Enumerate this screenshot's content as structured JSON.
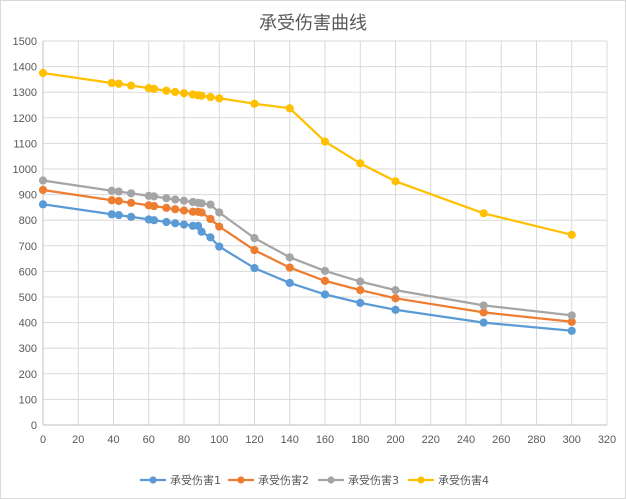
{
  "chart_data": {
    "type": "line",
    "title": "承受伤害曲线",
    "xlabel": "",
    "ylabel": "",
    "xlim": [
      0,
      320
    ],
    "ylim": [
      0,
      1500
    ],
    "x_ticks": [
      "0",
      "20",
      "40",
      "60",
      "80",
      "100",
      "120",
      "140",
      "160",
      "180",
      "200",
      "220",
      "240",
      "260",
      "280",
      "300",
      "320"
    ],
    "y_ticks": [
      "0",
      "100",
      "200",
      "300",
      "400",
      "500",
      "600",
      "700",
      "800",
      "900",
      "1000",
      "1100",
      "1200",
      "1300",
      "1400",
      "1500"
    ],
    "grid": true,
    "legend_position": "bottom",
    "x": [
      0,
      39,
      43,
      50,
      60,
      63,
      70,
      75,
      80,
      85,
      88,
      90,
      95,
      100,
      120,
      140,
      160,
      180,
      200,
      250,
      300
    ],
    "series": [
      {
        "name": "承受伤害1",
        "color": "#5b9bd5",
        "values": [
          862,
          823,
          820,
          813,
          803,
          800,
          793,
          788,
          783,
          778,
          778,
          755,
          733,
          697,
          613,
          555,
          510,
          477,
          450,
          400,
          368
        ]
      },
      {
        "name": "承受伤害2",
        "color": "#ed7d31",
        "values": [
          918,
          878,
          875,
          868,
          858,
          855,
          848,
          843,
          838,
          833,
          833,
          830,
          805,
          775,
          683,
          615,
          563,
          527,
          495,
          440,
          403
        ]
      },
      {
        "name": "承受伤害3",
        "color": "#a5a5a5",
        "values": [
          955,
          915,
          912,
          905,
          895,
          893,
          886,
          881,
          876,
          871,
          868,
          866,
          861,
          830,
          730,
          655,
          602,
          560,
          527,
          467,
          428
        ]
      },
      {
        "name": "承受伤害4",
        "color": "#ffc000",
        "values": [
          1375,
          1336,
          1333,
          1326,
          1316,
          1313,
          1306,
          1301,
          1296,
          1291,
          1288,
          1286,
          1281,
          1276,
          1255,
          1237,
          1107,
          1022,
          952,
          827,
          743
        ]
      }
    ]
  }
}
